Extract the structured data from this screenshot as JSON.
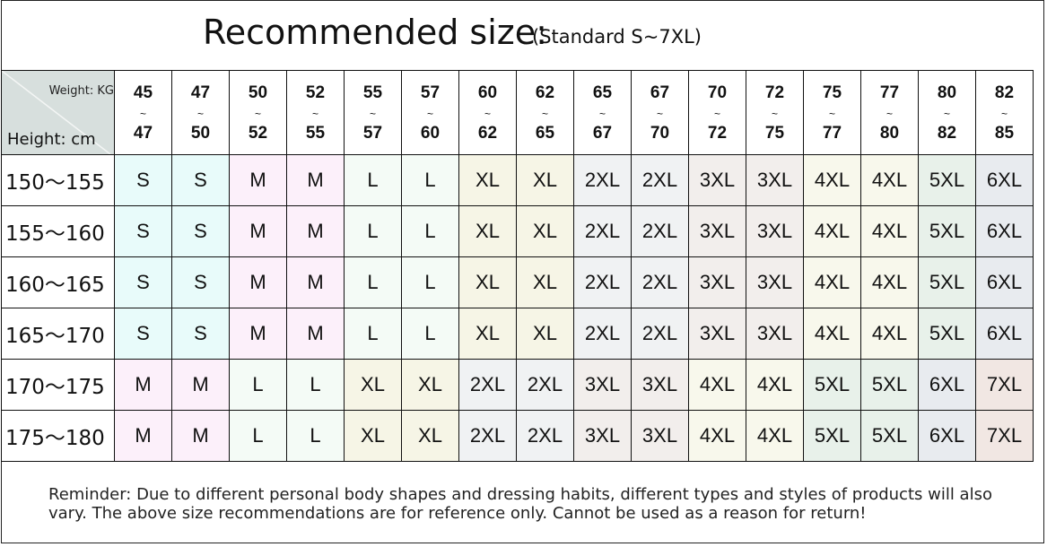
{
  "title": "Recommended size:",
  "subtitle": "(Standard S~7XL)",
  "corner": {
    "weight_label": "Weight: KG",
    "height_label": "Height: cm"
  },
  "weights": [
    [
      "45",
      "47"
    ],
    [
      "47",
      "50"
    ],
    [
      "50",
      "52"
    ],
    [
      "52",
      "55"
    ],
    [
      "55",
      "57"
    ],
    [
      "57",
      "60"
    ],
    [
      "60",
      "62"
    ],
    [
      "62",
      "65"
    ],
    [
      "65",
      "67"
    ],
    [
      "67",
      "70"
    ],
    [
      "70",
      "72"
    ],
    [
      "72",
      "75"
    ],
    [
      "75",
      "77"
    ],
    [
      "77",
      "80"
    ],
    [
      "80",
      "82"
    ],
    [
      "82",
      "85"
    ]
  ],
  "weight_sep": "~",
  "rows": [
    {
      "height": "150～155",
      "sizes": [
        "S",
        "S",
        "M",
        "M",
        "L",
        "L",
        "XL",
        "XL",
        "2XL",
        "2XL",
        "3XL",
        "3XL",
        "4XL",
        "4XL",
        "5XL",
        "6XL"
      ]
    },
    {
      "height": "155～160",
      "sizes": [
        "S",
        "S",
        "M",
        "M",
        "L",
        "L",
        "XL",
        "XL",
        "2XL",
        "2XL",
        "3XL",
        "3XL",
        "4XL",
        "4XL",
        "5XL",
        "6XL"
      ]
    },
    {
      "height": "160～165",
      "sizes": [
        "S",
        "S",
        "M",
        "M",
        "L",
        "L",
        "XL",
        "XL",
        "2XL",
        "2XL",
        "3XL",
        "3XL",
        "4XL",
        "4XL",
        "5XL",
        "6XL"
      ]
    },
    {
      "height": "165～170",
      "sizes": [
        "S",
        "S",
        "M",
        "M",
        "L",
        "L",
        "XL",
        "XL",
        "2XL",
        "2XL",
        "3XL",
        "3XL",
        "4XL",
        "4XL",
        "5XL",
        "6XL"
      ]
    },
    {
      "height": "170～175",
      "sizes": [
        "M",
        "M",
        "L",
        "L",
        "XL",
        "XL",
        "2XL",
        "2XL",
        "3XL",
        "3XL",
        "4XL",
        "4XL",
        "5XL",
        "5XL",
        "6XL",
        "7XL"
      ]
    },
    {
      "height": "175～180",
      "sizes": [
        "M",
        "M",
        "L",
        "L",
        "XL",
        "XL",
        "2XL",
        "2XL",
        "3XL",
        "3XL",
        "4XL",
        "4XL",
        "5XL",
        "5XL",
        "6XL",
        "7XL"
      ]
    }
  ],
  "size_colors": {
    "S": "#e8fbfa",
    "M": "#fcf0fa",
    "L": "#f4fbf6",
    "XL": "#f6f5e6",
    "2XL": "#f0f2f3",
    "3XL": "#f2eeec",
    "4XL": "#f8f8ec",
    "5XL": "#e8f1ea",
    "6XL": "#e8ebef",
    "7XL": "#f1e7e3"
  },
  "footer": "Reminder: Due to different personal body shapes and dressing habits, different types and styles of products will also vary. The above size recommendations are for reference only. Cannot be used as a reason for return!"
}
